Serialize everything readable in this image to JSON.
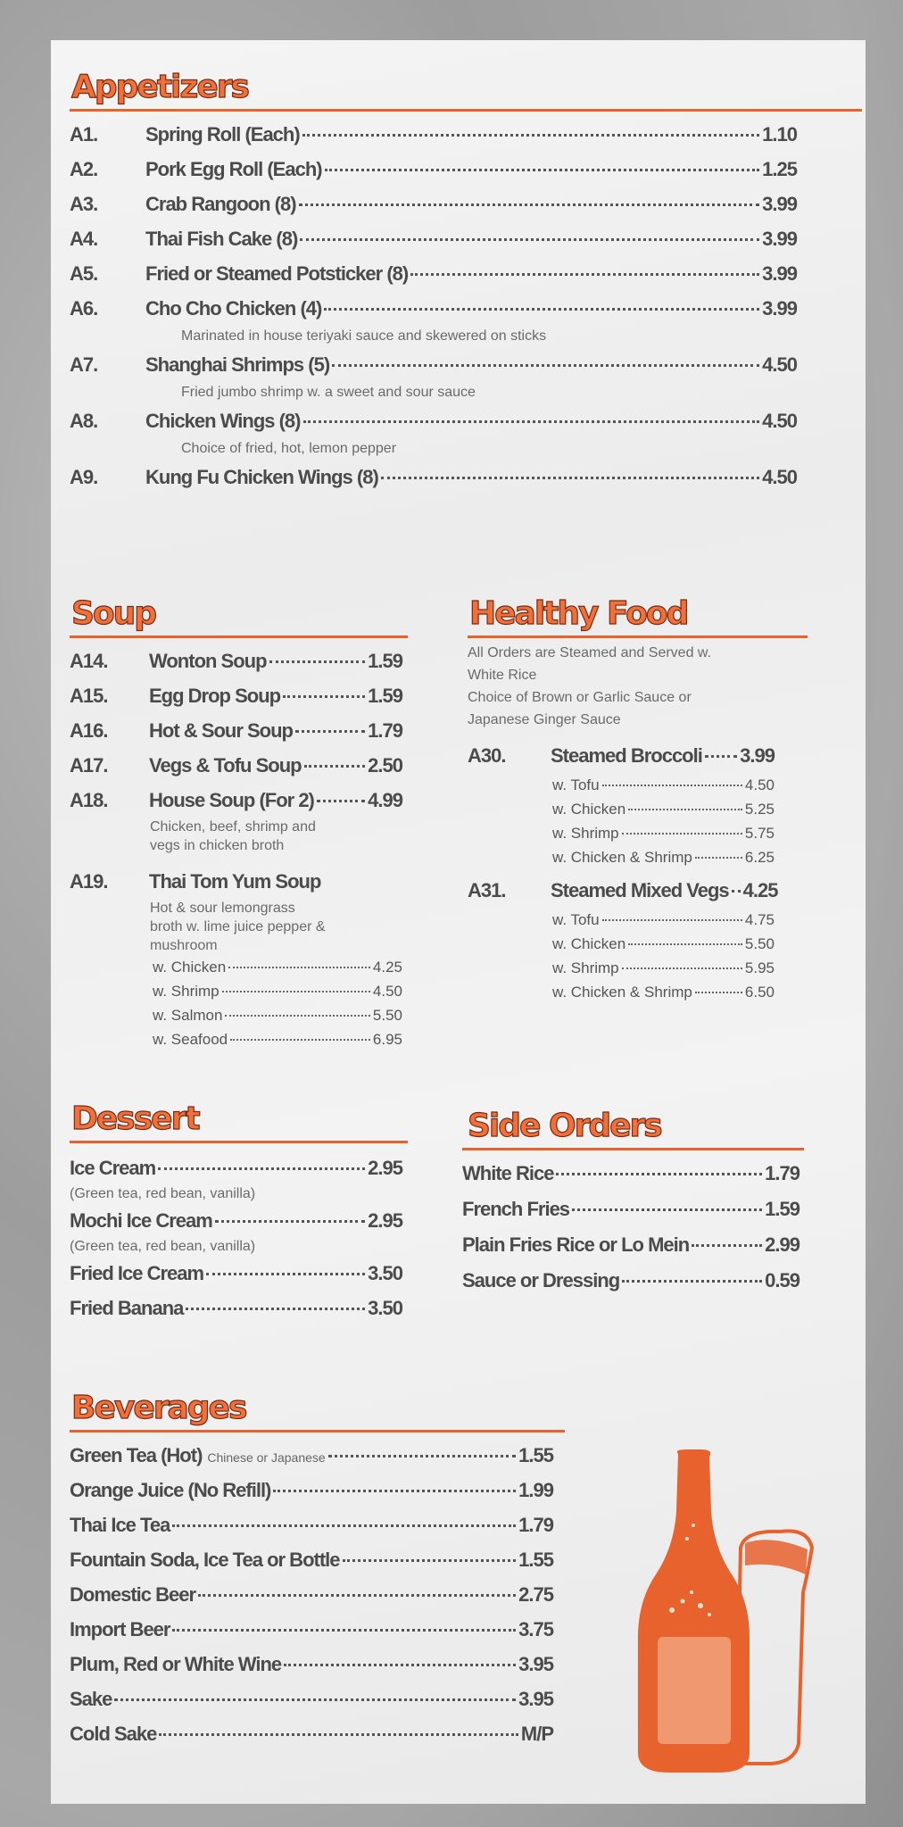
{
  "colors": {
    "accent": "#e8622e",
    "text": "#4a4a4a"
  },
  "appetizers": {
    "title": "Appetizers",
    "items": [
      {
        "code": "A1.",
        "name": "Spring Roll (Each)",
        "price": "1.10"
      },
      {
        "code": "A2.",
        "name": "Pork Egg Roll (Each)",
        "price": "1.25"
      },
      {
        "code": "A3.",
        "name": "Crab Rangoon (8)",
        "price": "3.99"
      },
      {
        "code": "A4.",
        "name": "Thai Fish Cake (8)",
        "price": "3.99"
      },
      {
        "code": "A5.",
        "name": "Fried or Steamed Potsticker (8)",
        "price": "3.99"
      },
      {
        "code": "A6.",
        "name": "Cho Cho Chicken (4)",
        "price": "3.99",
        "desc": "Marinated in house teriyaki sauce and skewered on sticks"
      },
      {
        "code": "A7.",
        "name": "Shanghai Shrimps (5)",
        "price": "4.50",
        "desc": "Fried jumbo shrimp w. a sweet and sour sauce"
      },
      {
        "code": "A8.",
        "name": "Chicken Wings (8)",
        "price": "4.50",
        "desc": "Choice of fried, hot, lemon pepper"
      },
      {
        "code": "A9.",
        "name": "Kung Fu Chicken Wings (8)",
        "price": "4.50"
      }
    ]
  },
  "soup": {
    "title": "Soup",
    "items": [
      {
        "code": "A14.",
        "name": "Wonton Soup",
        "price": "1.59"
      },
      {
        "code": "A15.",
        "name": "Egg Drop Soup",
        "price": "1.59"
      },
      {
        "code": "A16.",
        "name": "Hot & Sour Soup",
        "price": "1.79",
        "icon": "chili-pepper-icon"
      },
      {
        "code": "A17.",
        "name": "Vegs & Tofu Soup",
        "price": "2.50"
      },
      {
        "code": "A18.",
        "name": "House Soup (For 2)",
        "price": "4.99",
        "desc": [
          "Chicken, beef, shrimp and",
          "vegs in chicken broth"
        ]
      },
      {
        "code": "A19.",
        "name": "Thai Tom Yum Soup",
        "icon": "chili-pepper-icon",
        "desc": [
          "Hot & sour lemongrass",
          "broth w. lime juice pepper &",
          "mushroom"
        ],
        "options": [
          {
            "name": "w. Chicken",
            "price": "4.25"
          },
          {
            "name": "w. Shrimp",
            "price": "4.50"
          },
          {
            "name": "w. Salmon",
            "price": "5.50"
          },
          {
            "name": "w. Seafood",
            "price": "6.95"
          }
        ]
      }
    ]
  },
  "healthy": {
    "title": "Healthy Food",
    "desc": [
      "All Orders are Steamed and Served w.",
      "White Rice",
      "Choice of Brown or Garlic Sauce or",
      "Japanese Ginger Sauce"
    ],
    "items": [
      {
        "code": "A30.",
        "name": "Steamed Broccoli",
        "price": "3.99",
        "options": [
          {
            "name": "w. Tofu",
            "price": "4.50"
          },
          {
            "name": "w. Chicken",
            "price": "5.25"
          },
          {
            "name": "w. Shrimp",
            "price": "5.75"
          },
          {
            "name": "w. Chicken & Shrimp",
            "price": "6.25"
          }
        ]
      },
      {
        "code": "A31.",
        "name": "Steamed Mixed Vegs",
        "price": "4.25",
        "options": [
          {
            "name": "w. Tofu",
            "price": "4.75"
          },
          {
            "name": "w. Chicken",
            "price": "5.50"
          },
          {
            "name": "w. Shrimp",
            "price": "5.95"
          },
          {
            "name": "w. Chicken & Shrimp",
            "price": "6.50"
          }
        ]
      }
    ]
  },
  "dessert": {
    "title": "Dessert",
    "items": [
      {
        "name": "Ice Cream",
        "price": "2.95",
        "desc": "(Green tea, red bean, vanilla)"
      },
      {
        "name": "Mochi Ice Cream",
        "price": "2.95",
        "desc": "(Green tea, red bean, vanilla)"
      },
      {
        "name": "Fried Ice Cream",
        "price": "3.50"
      },
      {
        "name": "Fried Banana",
        "price": "3.50"
      }
    ]
  },
  "side": {
    "title": "Side Orders",
    "items": [
      {
        "name": "White Rice",
        "price": "1.79"
      },
      {
        "name": "French Fries",
        "price": "1.59"
      },
      {
        "name": "Plain Fries Rice or Lo Mein",
        "price": "2.99"
      },
      {
        "name": "Sauce or Dressing",
        "price": "0.59"
      }
    ]
  },
  "beverages": {
    "title": "Beverages",
    "items": [
      {
        "name": "Green Tea (Hot)",
        "note": "Chinese or Japanese",
        "price": "1.55"
      },
      {
        "name": "Orange Juice (No Refill)",
        "price": "1.99"
      },
      {
        "name": "Thai Ice Tea",
        "price": "1.79"
      },
      {
        "name": "Fountain Soda, Ice Tea or Bottle",
        "price": "1.55"
      },
      {
        "name": "Domestic Beer",
        "price": "2.75"
      },
      {
        "name": "Import Beer",
        "price": "3.75"
      },
      {
        "name": "Plum, Red or White Wine",
        "price": "3.95"
      },
      {
        "name": "Sake",
        "price": "3.95"
      },
      {
        "name": "Cold Sake",
        "price": "M/P"
      }
    ]
  },
  "illustration": {
    "icon": "beer-bottle-and-glass-icon"
  }
}
